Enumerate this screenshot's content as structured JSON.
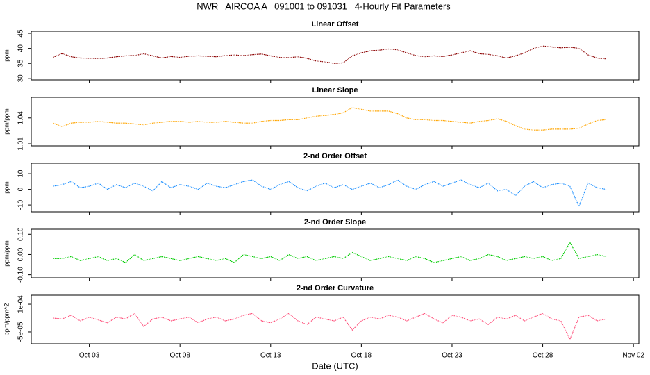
{
  "title": "NWR   AIRCOA A   091001 to 091031   4-Hourly Fit Parameters",
  "chart_data": [
    {
      "type": "line",
      "title": "Linear Offset",
      "ylabel": "ppm",
      "x": [
        1,
        1.5,
        2,
        2.5,
        3,
        3.5,
        4,
        4.5,
        5,
        5.5,
        6,
        6.5,
        7,
        7.5,
        8,
        8.5,
        9,
        9.5,
        10,
        10.5,
        11,
        11.5,
        12,
        12.5,
        13,
        13.5,
        14,
        14.5,
        15,
        15.5,
        16,
        16.5,
        17,
        17.5,
        18,
        18.5,
        19,
        19.5,
        20,
        20.5,
        21,
        21.5,
        22,
        22.5,
        23,
        23.5,
        24,
        24.5,
        25,
        25.5,
        26,
        26.5,
        27,
        27.5,
        28,
        28.5,
        29,
        29.5,
        30,
        30.5,
        31,
        31.5
      ],
      "series": [
        {
          "name": "Linear Offset",
          "color": "#8b0000",
          "values": [
            37,
            38.3,
            37.2,
            36.8,
            36.7,
            36.6,
            36.8,
            37.2,
            37.5,
            37.6,
            38.2,
            37.5,
            36.8,
            37.3,
            37,
            37.4,
            37.5,
            37.4,
            37.2,
            37.6,
            37.8,
            37.6,
            37.9,
            38.1,
            37.5,
            37,
            36.9,
            37.2,
            36.7,
            35.8,
            35.5,
            35,
            35.2,
            37.5,
            38.5,
            39.2,
            39.4,
            39.8,
            39.5,
            38.5,
            37.6,
            37.2,
            37.5,
            37.3,
            37.8,
            38.5,
            39.2,
            38.2,
            38,
            37.5,
            36.8,
            37.5,
            38.5,
            40,
            40.8,
            40.5,
            40.2,
            40.4,
            40,
            37.8,
            36.8,
            36.5
          ]
        }
      ],
      "xlim": [
        -0.2,
        33.3
      ],
      "xticks": [
        {
          "value": 3,
          "label": "Oct 03"
        },
        {
          "value": 8,
          "label": "Oct 08"
        },
        {
          "value": 13,
          "label": "Oct 13"
        },
        {
          "value": 18,
          "label": "Oct 18"
        },
        {
          "value": 23,
          "label": "Oct 23"
        },
        {
          "value": 28,
          "label": "Oct 28"
        },
        {
          "value": 33,
          "label": "Nov 02"
        }
      ],
      "ylim": [
        29.5,
        45.7
      ],
      "yticks": [
        30,
        35,
        40,
        45
      ]
    },
    {
      "type": "line",
      "title": "Linear Slope",
      "ylabel": "ppm/ppm",
      "x": [
        1,
        1.5,
        2,
        2.5,
        3,
        3.5,
        4,
        4.5,
        5,
        5.5,
        6,
        6.5,
        7,
        7.5,
        8,
        8.5,
        9,
        9.5,
        10,
        10.5,
        11,
        11.5,
        12,
        12.5,
        13,
        13.5,
        14,
        14.5,
        15,
        15.5,
        16,
        16.5,
        17,
        17.5,
        18,
        18.5,
        19,
        19.5,
        20,
        20.5,
        21,
        21.5,
        22,
        22.5,
        23,
        23.5,
        24,
        24.5,
        25,
        25.5,
        26,
        26.5,
        27,
        27.5,
        28,
        28.5,
        29,
        29.5,
        30,
        30.5,
        31,
        31.5
      ],
      "series": [
        {
          "name": "Linear Slope",
          "color": "#ffa500",
          "values": [
            1.034,
            1.03,
            1.034,
            1.035,
            1.035,
            1.036,
            1.035,
            1.034,
            1.034,
            1.033,
            1.032,
            1.034,
            1.035,
            1.036,
            1.036,
            1.035,
            1.036,
            1.035,
            1.035,
            1.036,
            1.035,
            1.034,
            1.034,
            1.036,
            1.037,
            1.037,
            1.038,
            1.038,
            1.04,
            1.042,
            1.043,
            1.044,
            1.046,
            1.052,
            1.05,
            1.048,
            1.048,
            1.048,
            1.045,
            1.04,
            1.038,
            1.038,
            1.037,
            1.037,
            1.036,
            1.035,
            1.034,
            1.036,
            1.037,
            1.039,
            1.036,
            1.031,
            1.027,
            1.026,
            1.026,
            1.027,
            1.027,
            1.027,
            1.028,
            1.033,
            1.037,
            1.038
          ]
        }
      ],
      "xlim": [
        -0.2,
        33.3
      ],
      "xticks": [
        {
          "value": 3,
          "label": "Oct 03"
        },
        {
          "value": 8,
          "label": "Oct 08"
        },
        {
          "value": 13,
          "label": "Oct 13"
        },
        {
          "value": 18,
          "label": "Oct 18"
        },
        {
          "value": 23,
          "label": "Oct 23"
        },
        {
          "value": 28,
          "label": "Oct 28"
        },
        {
          "value": 33,
          "label": "Nov 02"
        }
      ],
      "ylim": [
        1.0076,
        1.064
      ],
      "yticks": [
        1.01,
        1.04
      ]
    },
    {
      "type": "line",
      "title": "2-nd Order Offset",
      "ylabel": "ppm",
      "x": [
        1,
        1.5,
        2,
        2.5,
        3,
        3.5,
        4,
        4.5,
        5,
        5.5,
        6,
        6.5,
        7,
        7.5,
        8,
        8.5,
        9,
        9.5,
        10,
        10.5,
        11,
        11.5,
        12,
        12.5,
        13,
        13.5,
        14,
        14.5,
        15,
        15.5,
        16,
        16.5,
        17,
        17.5,
        18,
        18.5,
        19,
        19.5,
        20,
        20.5,
        21,
        21.5,
        22,
        22.5,
        23,
        23.5,
        24,
        24.5,
        25,
        25.5,
        26,
        26.5,
        27,
        27.5,
        28,
        28.5,
        29,
        29.5,
        30,
        30.5,
        31,
        31.5
      ],
      "series": [
        {
          "name": "2-nd Order Offset",
          "color": "#1e90ff",
          "values": [
            2,
            3,
            5,
            1,
            2,
            4,
            0,
            3,
            1,
            4,
            2,
            -1,
            5,
            1,
            3,
            2,
            0,
            4,
            2,
            1,
            3,
            5,
            6,
            2,
            0,
            3,
            5,
            1,
            -1,
            2,
            4,
            1,
            3,
            0,
            2,
            4,
            1,
            3,
            6,
            2,
            0,
            3,
            5,
            2,
            4,
            6,
            3,
            1,
            4,
            -1,
            0,
            -4,
            2,
            5,
            1,
            3,
            4,
            2,
            -11,
            4,
            1,
            0
          ]
        }
      ],
      "xlim": [
        -0.2,
        33.3
      ],
      "xticks": [
        {
          "value": 3,
          "label": "Oct 03"
        },
        {
          "value": 8,
          "label": "Oct 08"
        },
        {
          "value": 13,
          "label": "Oct 13"
        },
        {
          "value": 18,
          "label": "Oct 18"
        },
        {
          "value": 23,
          "label": "Oct 23"
        },
        {
          "value": 28,
          "label": "Oct 28"
        },
        {
          "value": 33,
          "label": "Nov 02"
        }
      ],
      "ylim": [
        -14.4,
        16.7
      ],
      "yticks": [
        -10,
        0,
        10
      ]
    },
    {
      "type": "line",
      "title": "2-nd Order Slope",
      "ylabel": "ppm/ppm",
      "x": [
        1,
        1.5,
        2,
        2.5,
        3,
        3.5,
        4,
        4.5,
        5,
        5.5,
        6,
        6.5,
        7,
        7.5,
        8,
        8.5,
        9,
        9.5,
        10,
        10.5,
        11,
        11.5,
        12,
        12.5,
        13,
        13.5,
        14,
        14.5,
        15,
        15.5,
        16,
        16.5,
        17,
        17.5,
        18,
        18.5,
        19,
        19.5,
        20,
        20.5,
        21,
        21.5,
        22,
        22.5,
        23,
        23.5,
        24,
        24.5,
        25,
        25.5,
        26,
        26.5,
        27,
        27.5,
        28,
        28.5,
        29,
        29.5,
        30,
        30.5,
        31,
        31.5
      ],
      "series": [
        {
          "name": "2-nd Order Slope",
          "color": "#00cc00",
          "values": [
            -0.02,
            -0.02,
            -0.01,
            -0.03,
            -0.02,
            -0.01,
            -0.03,
            -0.02,
            -0.04,
            0,
            -0.03,
            -0.02,
            -0.01,
            -0.02,
            -0.03,
            -0.02,
            -0.01,
            -0.02,
            -0.03,
            -0.02,
            -0.04,
            0,
            -0.01,
            -0.02,
            -0.01,
            -0.03,
            0,
            -0.02,
            -0.01,
            -0.03,
            -0.02,
            -0.01,
            -0.02,
            0.01,
            -0.01,
            -0.03,
            -0.02,
            -0.01,
            -0.02,
            -0.03,
            -0.01,
            -0.02,
            -0.04,
            -0.03,
            -0.02,
            -0.01,
            -0.03,
            -0.02,
            0,
            -0.01,
            -0.03,
            -0.02,
            -0.01,
            -0.02,
            -0.01,
            -0.03,
            -0.02,
            0.06,
            -0.02,
            -0.01,
            0,
            -0.01
          ]
        }
      ],
      "xlim": [
        -0.2,
        33.3
      ],
      "xticks": [
        {
          "value": 3,
          "label": "Oct 03"
        },
        {
          "value": 8,
          "label": "Oct 08"
        },
        {
          "value": 13,
          "label": "Oct 13"
        },
        {
          "value": 18,
          "label": "Oct 18"
        },
        {
          "value": 23,
          "label": "Oct 23"
        },
        {
          "value": 28,
          "label": "Oct 28"
        },
        {
          "value": 33,
          "label": "Nov 02"
        }
      ],
      "ylim": [
        -0.115,
        0.125
      ],
      "yticks": [
        {
          "value": -0.1,
          "label": "-0.10"
        },
        {
          "value": 0,
          "label": "0.00"
        },
        {
          "value": 0.1,
          "label": "0.10"
        }
      ]
    },
    {
      "type": "line",
      "title": "2-nd Order Curvature",
      "ylabel": "ppm/ppm^2",
      "xlabel": "Date (UTC)",
      "x": [
        1,
        1.5,
        2,
        2.5,
        3,
        3.5,
        4,
        4.5,
        5,
        5.5,
        6,
        6.5,
        7,
        7.5,
        8,
        8.5,
        9,
        9.5,
        10,
        10.5,
        11,
        11.5,
        12,
        12.5,
        13,
        13.5,
        14,
        14.5,
        15,
        15.5,
        16,
        16.5,
        17,
        17.5,
        18,
        18.5,
        19,
        19.5,
        20,
        20.5,
        21,
        21.5,
        22,
        22.5,
        23,
        23.5,
        24,
        24.5,
        25,
        25.5,
        26,
        26.5,
        27,
        27.5,
        28,
        28.5,
        29,
        29.5,
        30,
        30.5,
        31,
        31.5
      ],
      "series": [
        {
          "name": "2-nd Order Curvature",
          "color": "#ff4f7a",
          "values": [
            2.5e-05,
            2e-05,
            4e-05,
            1e-05,
            3e-05,
            1.5e-05,
            0,
            3e-05,
            2e-05,
            5e-05,
            -2e-05,
            2e-05,
            3e-05,
            1e-05,
            2e-05,
            3e-05,
            0,
            2e-05,
            3e-05,
            1e-05,
            2e-05,
            4e-05,
            5e-05,
            1e-05,
            0,
            2e-05,
            5e-05,
            1e-05,
            -1e-05,
            3e-05,
            2e-05,
            1e-05,
            3e-05,
            -4e-05,
            1e-05,
            3e-05,
            2e-05,
            4e-05,
            3e-05,
            1e-05,
            3e-05,
            5e-05,
            2e-05,
            0,
            4e-05,
            3e-05,
            1e-05,
            2e-05,
            -1e-05,
            3e-05,
            2e-05,
            4e-05,
            1e-05,
            3e-05,
            5e-05,
            2e-05,
            1e-05,
            -9e-05,
            3e-05,
            4e-05,
            1e-05,
            2e-05
          ]
        }
      ],
      "xlim": [
        -0.2,
        33.3
      ],
      "xticks": [
        {
          "value": 3,
          "label": "Oct 03"
        },
        {
          "value": 8,
          "label": "Oct 08"
        },
        {
          "value": 13,
          "label": "Oct 13"
        },
        {
          "value": 18,
          "label": "Oct 18"
        },
        {
          "value": 23,
          "label": "Oct 23"
        },
        {
          "value": 28,
          "label": "Oct 28"
        },
        {
          "value": 33,
          "label": "Nov 02"
        }
      ],
      "ylim": [
        -0.000114,
        0.000149
      ],
      "yticks": [
        {
          "value": -5e-05,
          "label": "-5e-05"
        },
        {
          "value": 0.0001,
          "label": "1e-04"
        }
      ]
    }
  ]
}
